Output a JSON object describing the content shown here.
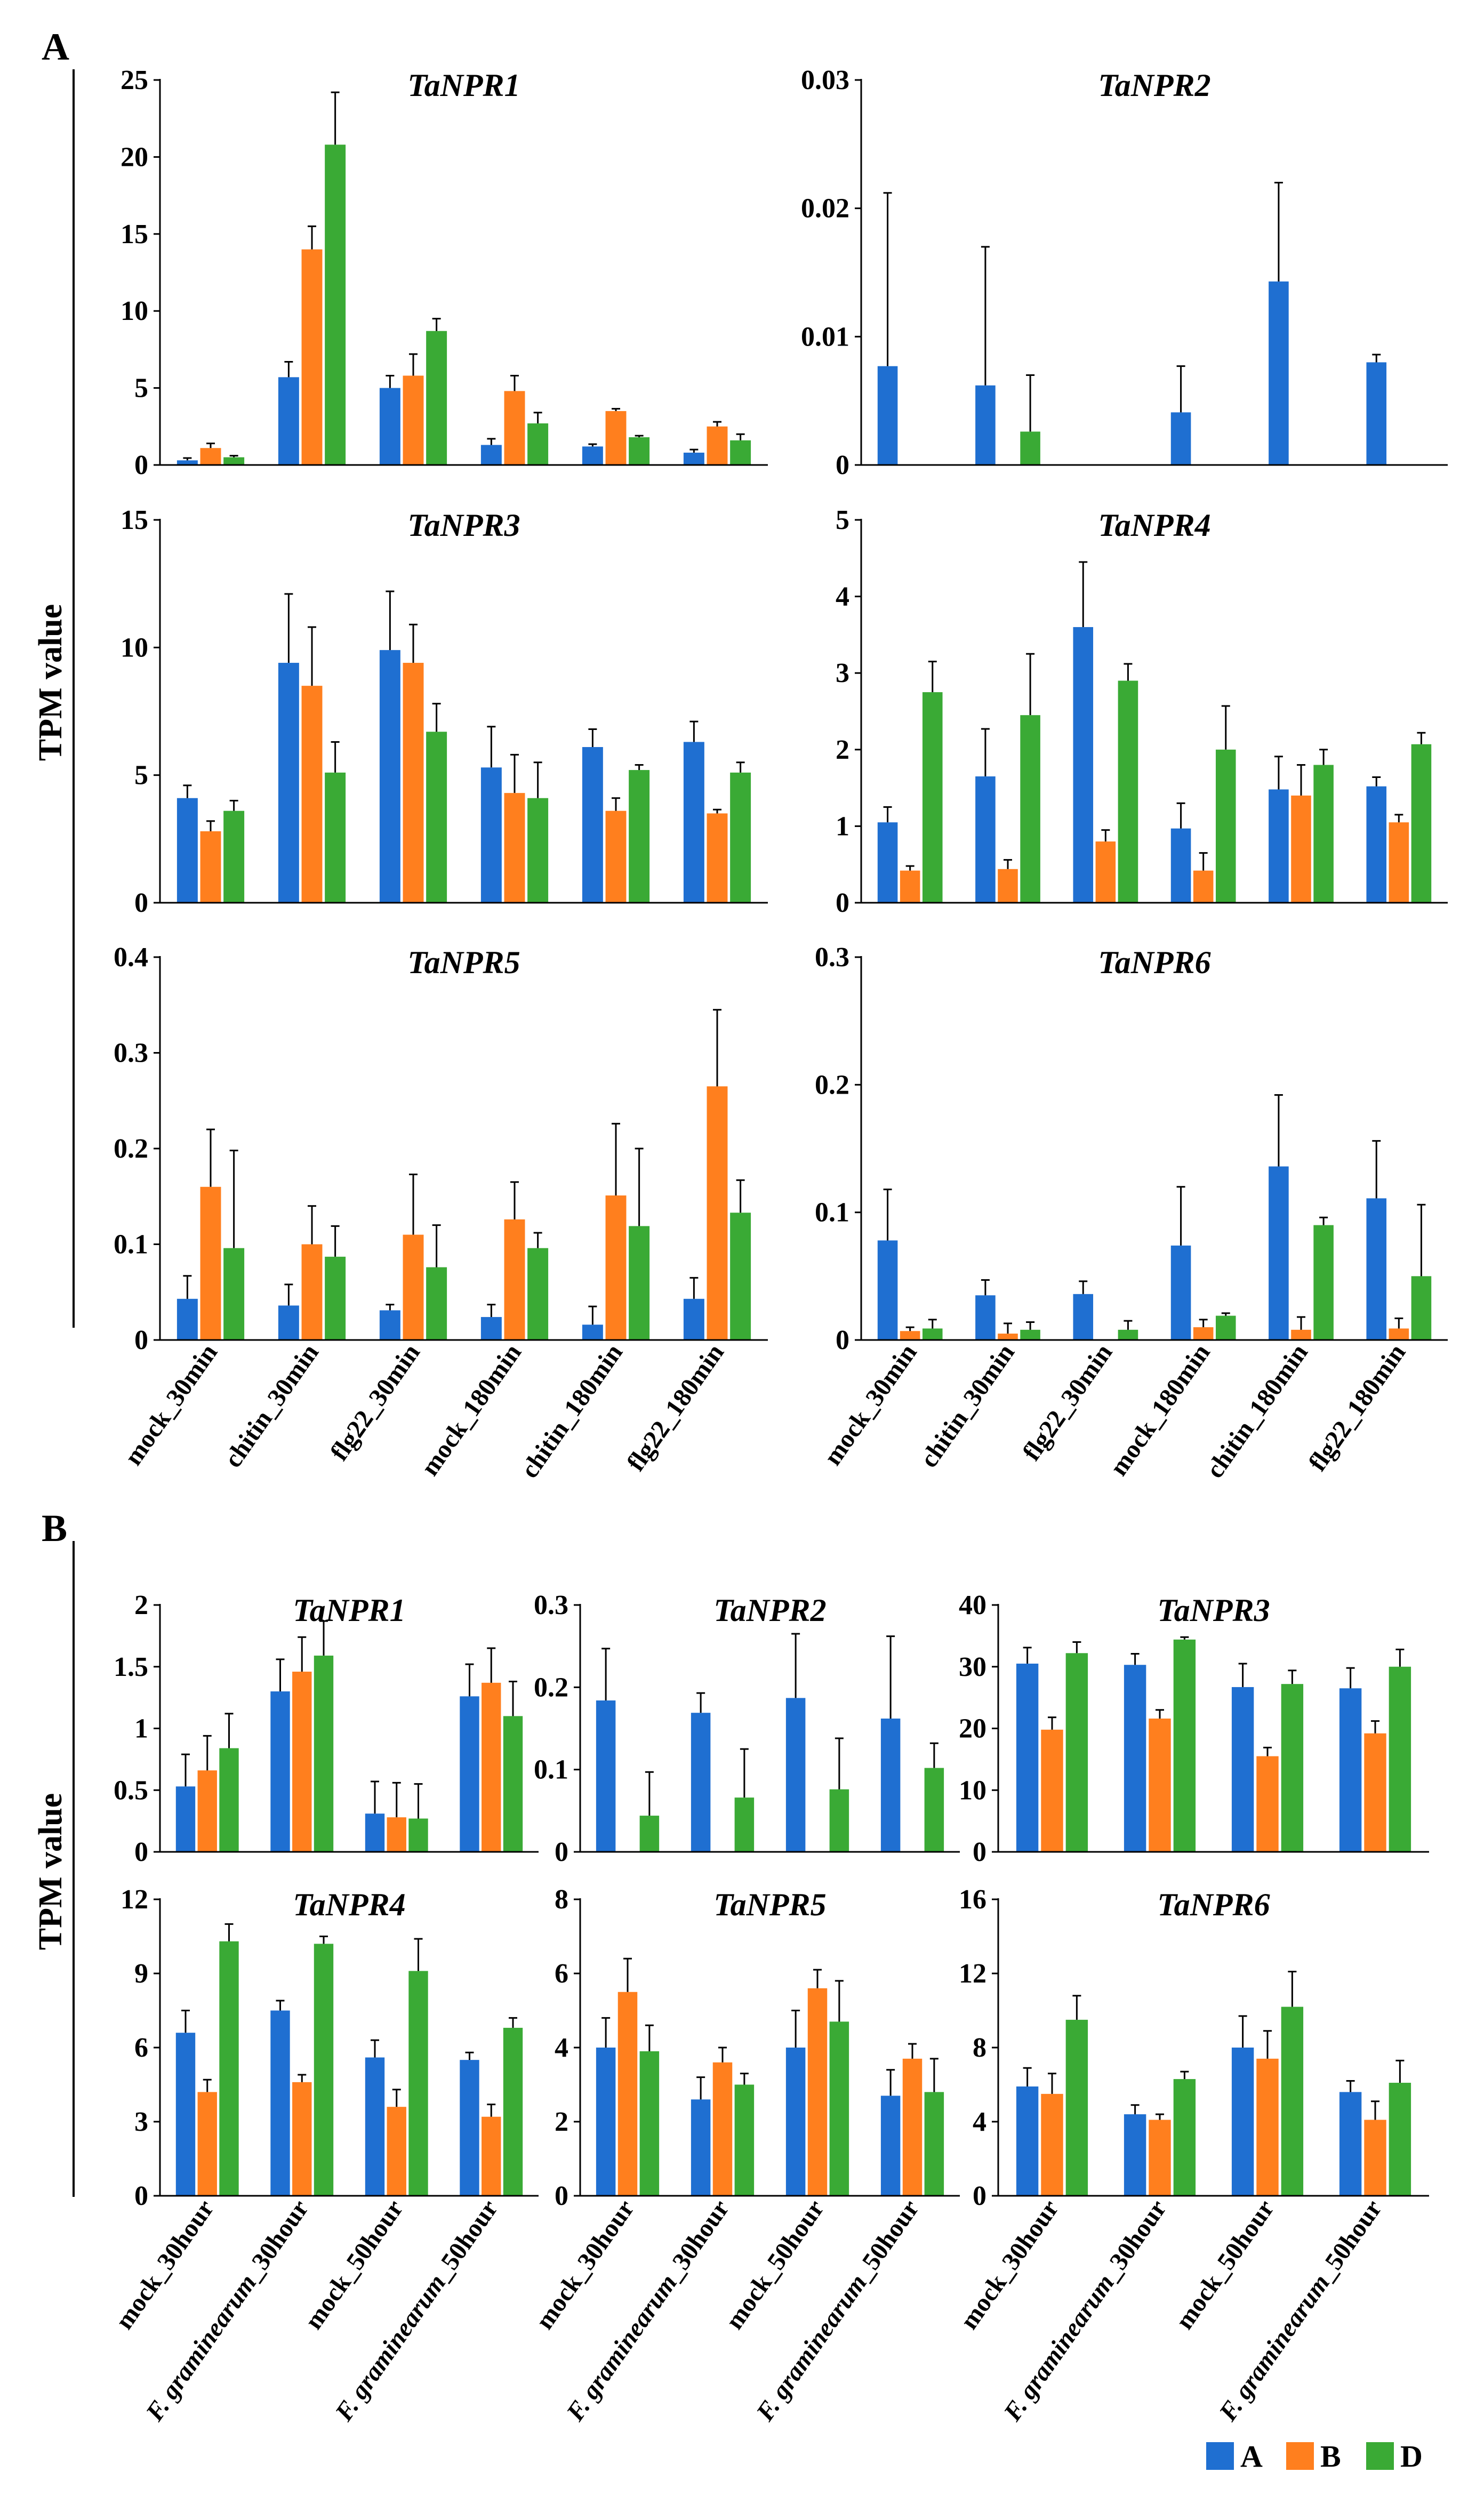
{
  "figure": {
    "panel_a_label": "A",
    "panel_b_label": "B",
    "panel_a_ylabel": "TPM value",
    "panel_b_ylabel": "TPM value"
  },
  "legend": {
    "items": [
      {
        "label": "A",
        "color": "#1f6fd1"
      },
      {
        "label": "B",
        "color": "#ff7f1e"
      },
      {
        "label": "D",
        "color": "#3aaa35"
      }
    ]
  },
  "chart_data": [
    {
      "panel": "A",
      "type": "bar",
      "title": "TaNPR1",
      "categories": [
        "mock_30min",
        "chitin_30min",
        "flg22_30min",
        "mock_180min",
        "chitin_180min",
        "flg22_180min"
      ],
      "yticks": [
        "0",
        "5",
        "10",
        "15",
        "20",
        "25"
      ],
      "ylim": [
        0,
        25
      ],
      "series": [
        {
          "name": "A",
          "values": [
            0.3,
            5.7,
            5.0,
            1.3,
            1.2,
            0.8
          ],
          "errors": [
            0.15,
            1.0,
            0.8,
            0.4,
            0.15,
            0.2
          ]
        },
        {
          "name": "B",
          "values": [
            1.1,
            14.0,
            5.8,
            4.8,
            3.5,
            2.5
          ],
          "errors": [
            0.3,
            1.5,
            1.4,
            1.0,
            0.15,
            0.3
          ]
        },
        {
          "name": "D",
          "values": [
            0.5,
            20.8,
            8.7,
            2.7,
            1.8,
            1.6
          ],
          "errors": [
            0.1,
            3.4,
            0.8,
            0.7,
            0.1,
            0.4
          ]
        }
      ]
    },
    {
      "panel": "A",
      "type": "bar",
      "title": "TaNPR2",
      "categories": [
        "mock_30min",
        "chitin_30min",
        "flg22_30min",
        "mock_180min",
        "chitin_180min",
        "flg22_180min"
      ],
      "yticks": [
        "0",
        "0.01",
        "0.02",
        "0.03"
      ],
      "ylim": [
        0,
        0.03
      ],
      "series": [
        {
          "name": "A",
          "values": [
            0.0077,
            0.0062,
            0,
            0.0041,
            0.0143,
            0.008
          ],
          "errors": [
            0.0135,
            0.0108,
            0,
            0.0036,
            0.0077,
            0.0006
          ]
        },
        {
          "name": "B",
          "values": [
            0,
            0,
            0,
            0,
            0,
            0
          ],
          "errors": [
            0,
            0,
            0,
            0,
            0,
            0
          ]
        },
        {
          "name": "D",
          "values": [
            0,
            0.0026,
            0,
            0,
            0,
            0
          ],
          "errors": [
            0,
            0.0044,
            0,
            0,
            0,
            0
          ]
        }
      ]
    },
    {
      "panel": "A",
      "type": "bar",
      "title": "TaNPR3",
      "categories": [
        "mock_30min",
        "chitin_30min",
        "flg22_30min",
        "mock_180min",
        "chitin_180min",
        "flg22_180min"
      ],
      "yticks": [
        "0",
        "5",
        "10",
        "15"
      ],
      "ylim": [
        0,
        15
      ],
      "series": [
        {
          "name": "A",
          "values": [
            4.1,
            9.4,
            9.9,
            5.3,
            6.1,
            6.3
          ],
          "errors": [
            0.5,
            2.7,
            2.3,
            1.6,
            0.7,
            0.8
          ]
        },
        {
          "name": "B",
          "values": [
            2.8,
            8.5,
            9.4,
            4.3,
            3.6,
            3.5
          ],
          "errors": [
            0.4,
            2.3,
            1.5,
            1.5,
            0.5,
            0.15
          ]
        },
        {
          "name": "D",
          "values": [
            3.6,
            5.1,
            6.7,
            4.1,
            5.2,
            5.1
          ],
          "errors": [
            0.4,
            1.2,
            1.1,
            1.4,
            0.2,
            0.4
          ]
        }
      ]
    },
    {
      "panel": "A",
      "type": "bar",
      "title": "TaNPR4",
      "categories": [
        "mock_30min",
        "chitin_30min",
        "flg22_30min",
        "mock_180min",
        "chitin_180min",
        "flg22_180min"
      ],
      "yticks": [
        "0",
        "1",
        "2",
        "3",
        "4",
        "5"
      ],
      "ylim": [
        0,
        5
      ],
      "series": [
        {
          "name": "A",
          "values": [
            1.05,
            1.65,
            3.6,
            0.97,
            1.48,
            1.52
          ],
          "errors": [
            0.2,
            0.62,
            0.85,
            0.33,
            0.43,
            0.12
          ]
        },
        {
          "name": "B",
          "values": [
            0.42,
            0.44,
            0.8,
            0.42,
            1.4,
            1.05
          ],
          "errors": [
            0.06,
            0.12,
            0.15,
            0.23,
            0.4,
            0.1
          ]
        },
        {
          "name": "D",
          "values": [
            2.75,
            2.45,
            2.9,
            2.0,
            1.8,
            2.07
          ],
          "errors": [
            0.4,
            0.8,
            0.22,
            0.57,
            0.2,
            0.15
          ]
        }
      ]
    },
    {
      "panel": "A",
      "type": "bar",
      "title": "TaNPR5",
      "categories": [
        "mock_30min",
        "chitin_30min",
        "flg22_30min",
        "mock_180min",
        "chitin_180min",
        "flg22_180min"
      ],
      "yticks": [
        "0",
        "0.1",
        "0.2",
        "0.3",
        "0.4"
      ],
      "ylim": [
        0,
        0.4
      ],
      "series": [
        {
          "name": "A",
          "values": [
            0.043,
            0.036,
            0.031,
            0.024,
            0.016,
            0.043
          ],
          "errors": [
            0.024,
            0.022,
            0.006,
            0.013,
            0.019,
            0.022
          ]
        },
        {
          "name": "B",
          "values": [
            0.16,
            0.1,
            0.11,
            0.126,
            0.151,
            0.265
          ],
          "errors": [
            0.06,
            0.04,
            0.063,
            0.039,
            0.075,
            0.08
          ]
        },
        {
          "name": "D",
          "values": [
            0.096,
            0.087,
            0.076,
            0.096,
            0.119,
            0.133
          ],
          "errors": [
            0.102,
            0.032,
            0.044,
            0.016,
            0.081,
            0.034
          ]
        }
      ]
    },
    {
      "panel": "A",
      "type": "bar",
      "title": "TaNPR6",
      "categories": [
        "mock_30min",
        "chitin_30min",
        "flg22_30min",
        "mock_180min",
        "chitin_180min",
        "flg22_180min"
      ],
      "yticks": [
        "0",
        "0.1",
        "0.2",
        "0.3"
      ],
      "ylim": [
        0,
        0.3
      ],
      "series": [
        {
          "name": "A",
          "values": [
            0.078,
            0.035,
            0.036,
            0.074,
            0.136,
            0.111
          ],
          "errors": [
            0.04,
            0.012,
            0.01,
            0.046,
            0.056,
            0.045
          ]
        },
        {
          "name": "B",
          "values": [
            0.007,
            0.005,
            0,
            0.01,
            0.008,
            0.009
          ],
          "errors": [
            0.003,
            0.008,
            0,
            0.006,
            0.01,
            0.008
          ]
        },
        {
          "name": "D",
          "values": [
            0.009,
            0.008,
            0.008,
            0.019,
            0.09,
            0.05
          ],
          "errors": [
            0.007,
            0.006,
            0.007,
            0.002,
            0.006,
            0.056
          ]
        }
      ]
    },
    {
      "panel": "B",
      "type": "bar",
      "title": "TaNPR1",
      "categories": [
        "mock_30hour",
        "F. graminearum_30hour",
        "mock_50hour",
        "F. graminearum_50hour"
      ],
      "yticks": [
        "0",
        "0.5",
        "1",
        "1.5",
        "2"
      ],
      "ylim": [
        0,
        2
      ],
      "series": [
        {
          "name": "A",
          "values": [
            0.53,
            1.3,
            0.31,
            1.26
          ],
          "errors": [
            0.26,
            0.26,
            0.26,
            0.26
          ]
        },
        {
          "name": "B",
          "values": [
            0.66,
            1.46,
            0.28,
            1.37
          ],
          "errors": [
            0.28,
            0.28,
            0.28,
            0.28
          ]
        },
        {
          "name": "D",
          "values": [
            0.84,
            1.59,
            0.27,
            1.1
          ],
          "errors": [
            0.28,
            0.28,
            0.28,
            0.28
          ]
        }
      ]
    },
    {
      "panel": "B",
      "type": "bar",
      "title": "TaNPR2",
      "categories": [
        "mock_30hour",
        "F. graminearum_30hour",
        "mock_50hour",
        "F. graminearum_50hour"
      ],
      "yticks": [
        "0",
        "0.1",
        "0.2",
        "0.3"
      ],
      "ylim": [
        0,
        0.3
      ],
      "series": [
        {
          "name": "A",
          "values": [
            0.184,
            0.169,
            0.187,
            0.162
          ],
          "errors": [
            0.063,
            0.024,
            0.078,
            0.1
          ]
        },
        {
          "name": "B",
          "values": [
            0,
            0,
            0,
            0
          ],
          "errors": [
            0,
            0,
            0,
            0
          ]
        },
        {
          "name": "D",
          "values": [
            0.044,
            0.066,
            0.076,
            0.102
          ],
          "errors": [
            0.053,
            0.059,
            0.062,
            0.03
          ]
        }
      ]
    },
    {
      "panel": "B",
      "type": "bar",
      "title": "TaNPR3",
      "categories": [
        "mock_30hour",
        "F. graminearum_30hour",
        "mock_50hour",
        "F. graminearum_50hour"
      ],
      "yticks": [
        "0",
        "10",
        "20",
        "30",
        "40"
      ],
      "ylim": [
        0,
        40
      ],
      "series": [
        {
          "name": "A",
          "values": [
            30.5,
            30.3,
            26.7,
            26.5
          ],
          "errors": [
            2.6,
            1.8,
            3.8,
            3.3
          ]
        },
        {
          "name": "B",
          "values": [
            19.8,
            21.6,
            15.5,
            19.2
          ],
          "errors": [
            2.0,
            1.4,
            1.4,
            2.0
          ]
        },
        {
          "name": "D",
          "values": [
            32.2,
            34.4,
            27.2,
            30.0
          ],
          "errors": [
            1.8,
            0.4,
            2.2,
            2.8
          ]
        }
      ]
    },
    {
      "panel": "B",
      "type": "bar",
      "title": "TaNPR4",
      "categories": [
        "mock_30hour",
        "F. graminearum_30hour",
        "mock_50hour",
        "F. graminearum_50hour"
      ],
      "yticks": [
        "0",
        "3",
        "6",
        "9",
        "12"
      ],
      "ylim": [
        0,
        12
      ],
      "series": [
        {
          "name": "A",
          "values": [
            6.6,
            7.5,
            5.6,
            5.5
          ],
          "errors": [
            0.9,
            0.4,
            0.7,
            0.3
          ]
        },
        {
          "name": "B",
          "values": [
            4.2,
            4.6,
            3.6,
            3.2
          ],
          "errors": [
            0.5,
            0.3,
            0.7,
            0.5
          ]
        },
        {
          "name": "D",
          "values": [
            10.3,
            10.2,
            9.1,
            6.8
          ],
          "errors": [
            0.7,
            0.3,
            1.3,
            0.4
          ]
        }
      ]
    },
    {
      "panel": "B",
      "type": "bar",
      "title": "TaNPR5",
      "categories": [
        "mock_30hour",
        "F. graminearum_30hour",
        "mock_50hour",
        "F. graminearum_50hour"
      ],
      "yticks": [
        "0",
        "2",
        "4",
        "6",
        "8"
      ],
      "ylim": [
        0,
        8
      ],
      "series": [
        {
          "name": "A",
          "values": [
            4.0,
            2.6,
            4.0,
            2.7
          ],
          "errors": [
            0.8,
            0.6,
            1.0,
            0.7
          ]
        },
        {
          "name": "B",
          "values": [
            5.5,
            3.6,
            5.6,
            3.7
          ],
          "errors": [
            0.9,
            0.4,
            0.5,
            0.4
          ]
        },
        {
          "name": "D",
          "values": [
            3.9,
            3.0,
            4.7,
            2.8
          ],
          "errors": [
            0.7,
            0.3,
            1.1,
            0.9
          ]
        }
      ]
    },
    {
      "panel": "B",
      "type": "bar",
      "title": "TaNPR6",
      "categories": [
        "mock_30hour",
        "F. graminearum_30hour",
        "mock_50hour",
        "F. graminearum_50hour"
      ],
      "yticks": [
        "0",
        "4",
        "8",
        "12",
        "16"
      ],
      "ylim": [
        0,
        16
      ],
      "series": [
        {
          "name": "A",
          "values": [
            5.9,
            4.4,
            8.0,
            5.6
          ],
          "errors": [
            1.0,
            0.5,
            1.7,
            0.6
          ]
        },
        {
          "name": "B",
          "values": [
            5.5,
            4.1,
            7.4,
            4.1
          ],
          "errors": [
            1.1,
            0.3,
            1.5,
            1.0
          ]
        },
        {
          "name": "D",
          "values": [
            9.5,
            6.3,
            10.2,
            6.1
          ],
          "errors": [
            1.3,
            0.4,
            1.9,
            1.2
          ]
        }
      ]
    }
  ]
}
